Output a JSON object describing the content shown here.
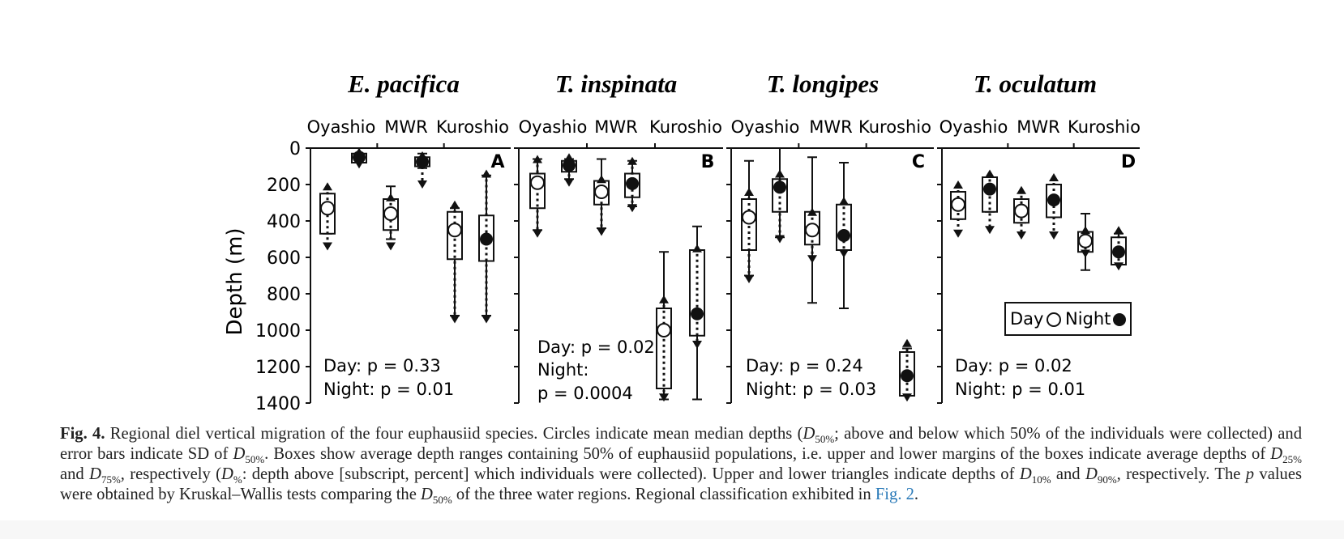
{
  "figure": {
    "y_axis_label": "Depth (m)",
    "y_ticks": [
      "0",
      "200",
      "400",
      "600",
      "800",
      "1000",
      "1200",
      "1400"
    ],
    "legend": {
      "day": "Day",
      "night": "Night"
    },
    "panels": [
      {
        "title": "E. pacifica",
        "letter": "A",
        "regions": [
          "Oyashio",
          "MWR",
          "Kuroshio"
        ],
        "day_stat": "p = 0.33",
        "night_stat": "p = 0.01"
      },
      {
        "title": "T. inspinata",
        "letter": "B",
        "regions": [
          "Oyashio",
          "MWR",
          "Kuroshio"
        ],
        "day_stat": "p = 0.02",
        "night_label": "Night:",
        "night_stat": "p = 0.0004"
      },
      {
        "title": "T. longipes",
        "letter": "C",
        "regions": [
          "Oyashio",
          "MWR",
          "Kuroshio"
        ],
        "day_stat": "p = 0.24",
        "night_stat": "p = 0.03"
      },
      {
        "title": "T. oculatum",
        "letter": "D",
        "regions": [
          "Oyashio",
          "MWR",
          "Kuroshio"
        ],
        "day_stat": "p = 0.02",
        "night_stat": "p = 0.01"
      }
    ]
  },
  "chart_data": {
    "type": "box",
    "ylabel": "Depth (m)",
    "ylim": [
      0,
      1400
    ],
    "y_inverted": true,
    "panels": [
      {
        "panel": "A",
        "species": "E. pacifica",
        "series": [
          {
            "region": "Oyashio",
            "time": "Day",
            "d10": 210,
            "d25": 250,
            "d50": 330,
            "d75": 470,
            "d90": 540,
            "sd": [
              250,
              470
            ]
          },
          {
            "region": "Oyashio",
            "time": "Night",
            "d10": 20,
            "d25": 30,
            "d50": 50,
            "d75": 80,
            "d90": 90,
            "sd": [
              30,
              80
            ]
          },
          {
            "region": "MWR",
            "time": "Day",
            "d10": 270,
            "d25": 280,
            "d50": 360,
            "d75": 450,
            "d90": 540,
            "sd": [
              210,
              500
            ]
          },
          {
            "region": "MWR",
            "time": "Night",
            "d10": 40,
            "d25": 50,
            "d50": 75,
            "d75": 100,
            "d90": 200,
            "sd": [
              30,
              110
            ]
          },
          {
            "region": "Kuroshio",
            "time": "Day",
            "d10": 310,
            "d25": 350,
            "d50": 450,
            "d75": 610,
            "d90": 940,
            "sd": [
              330,
              920
            ]
          },
          {
            "region": "Kuroshio",
            "time": "Night",
            "d10": 140,
            "d25": 370,
            "d50": 500,
            "d75": 620,
            "d90": 940,
            "sd": [
              150,
              920
            ]
          }
        ]
      },
      {
        "panel": "B",
        "species": "T. inspinata",
        "series": [
          {
            "region": "Oyashio",
            "time": "Day",
            "d10": 60,
            "d25": 140,
            "d50": 190,
            "d75": 330,
            "d90": 470,
            "sd": [
              60,
              450
            ]
          },
          {
            "region": "Oyashio",
            "time": "Night",
            "d10": 50,
            "d25": 70,
            "d50": 95,
            "d75": 130,
            "d90": 190,
            "sd": [
              60,
              170
            ]
          },
          {
            "region": "MWR",
            "time": "Day",
            "d10": 170,
            "d25": 180,
            "d50": 240,
            "d75": 310,
            "d90": 460,
            "sd": [
              60,
              440
            ]
          },
          {
            "region": "MWR",
            "time": "Night",
            "d10": 70,
            "d25": 140,
            "d50": 195,
            "d75": 270,
            "d90": 330,
            "sd": [
              70,
              320
            ]
          },
          {
            "region": "Kuroshio",
            "time": "Day",
            "d10": 830,
            "d25": 880,
            "d50": 1000,
            "d75": 1320,
            "d90": 1370,
            "sd": [
              570,
              1380
            ]
          },
          {
            "region": "Kuroshio",
            "time": "Night",
            "d10": 550,
            "d25": 560,
            "d50": 910,
            "d75": 1030,
            "d90": 1080,
            "sd": [
              430,
              1380
            ]
          }
        ]
      },
      {
        "panel": "C",
        "species": "T. longipes",
        "series": [
          {
            "region": "Oyashio",
            "time": "Day",
            "d10": 240,
            "d25": 280,
            "d50": 380,
            "d75": 560,
            "d90": 720,
            "sd": [
              70,
              700
            ]
          },
          {
            "region": "Oyashio",
            "time": "Night",
            "d10": 140,
            "d25": 170,
            "d50": 215,
            "d75": 350,
            "d90": 500,
            "sd": [
              0,
              490
            ]
          },
          {
            "region": "MWR",
            "time": "Day",
            "d10": 350,
            "d25": 350,
            "d50": 450,
            "d75": 530,
            "d90": 610,
            "sd": [
              50,
              850
            ]
          },
          {
            "region": "MWR",
            "time": "Night",
            "d10": 290,
            "d25": 310,
            "d50": 480,
            "d75": 560,
            "d90": 580,
            "sd": [
              80,
              880
            ]
          },
          {
            "region": "Kuroshio",
            "time": "Night",
            "d10": 1070,
            "d25": 1120,
            "d50": 1250,
            "d75": 1360,
            "d90": 1370,
            "sd": [
              1100,
              1360
            ]
          }
        ]
      },
      {
        "panel": "D",
        "species": "T. oculatum",
        "series": [
          {
            "region": "Oyashio",
            "time": "Day",
            "d10": 200,
            "d25": 240,
            "d50": 310,
            "d75": 390,
            "d90": 470,
            "sd": [
              240,
              390
            ]
          },
          {
            "region": "Oyashio",
            "time": "Night",
            "d10": 140,
            "d25": 160,
            "d50": 225,
            "d75": 350,
            "d90": 450,
            "sd": [
              160,
              350
            ]
          },
          {
            "region": "MWR",
            "time": "Day",
            "d10": 230,
            "d25": 280,
            "d50": 345,
            "d75": 410,
            "d90": 480,
            "sd": [
              280,
              410
            ]
          },
          {
            "region": "MWR",
            "time": "Night",
            "d10": 160,
            "d25": 200,
            "d50": 285,
            "d75": 380,
            "d90": 480,
            "sd": [
              200,
              380
            ]
          },
          {
            "region": "Kuroshio",
            "time": "Day",
            "d10": 450,
            "d25": 460,
            "d50": 510,
            "d75": 570,
            "d90": 580,
            "sd": [
              360,
              670
            ]
          },
          {
            "region": "Kuroshio",
            "time": "Night",
            "d10": 450,
            "d25": 490,
            "d50": 570,
            "d75": 640,
            "d90": 650,
            "sd": [
              470,
              630
            ]
          }
        ]
      }
    ]
  },
  "caption": {
    "fig_label": "Fig. 4.",
    "text_1": " Regional diel vertical migration of the four euphausiid species. Circles indicate mean median depths (",
    "d_sym": "D",
    "sub_50": "50%",
    "text_2": "; above and below which 50% of the individuals were collected) and error bars indicate SD of ",
    "text_3": ". Boxes show average depth ranges containing 50% of euphausiid populations, i.e. upper and lower margins of the boxes indicate average depths of ",
    "sub_25": "25%",
    "text_and": " and ",
    "sub_75": "75%",
    "text_4": ", respectively (",
    "sub_pct": "%",
    "text_5": ": depth above [subscript, percent] which individuals were collected). Upper and lower triangles indicate depths of ",
    "sub_10": "10%",
    "sub_90": "90%",
    "text_6": ", respectively. The ",
    "p_sym": "p",
    "text_7": " values were obtained by Kruskal–Wallis tests comparing the ",
    "text_8": " of the three water regions. Regional classification exhibited in ",
    "fig_link": "Fig. 2",
    "period": "."
  }
}
